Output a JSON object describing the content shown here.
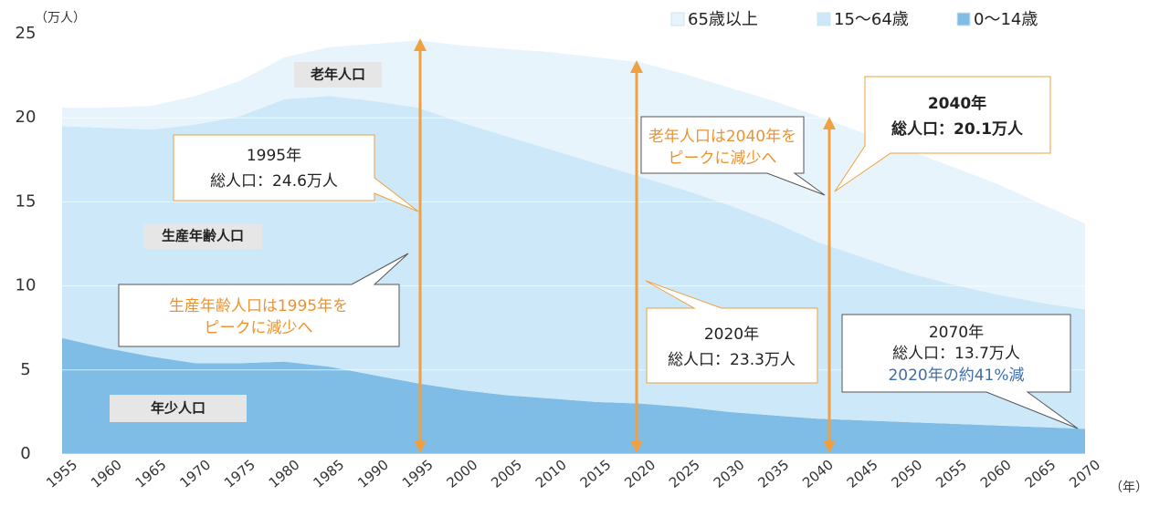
{
  "chart_data": {
    "type": "stacked_area",
    "y_unit_label": "（万人）",
    "x_unit_label": "（年）",
    "categories": [
      "1955",
      "1960",
      "1965",
      "1970",
      "1975",
      "1980",
      "1985",
      "1990",
      "1995",
      "2000",
      "2005",
      "2010",
      "2015",
      "2020",
      "2025",
      "2030",
      "2035",
      "2040",
      "2045",
      "2050",
      "2055",
      "2060",
      "2065",
      "2070"
    ],
    "series": [
      {
        "name": "0～14歳",
        "color": "#7fbde6",
        "values": [
          6.9,
          6.3,
          5.8,
          5.4,
          5.4,
          5.5,
          5.2,
          4.7,
          4.2,
          3.8,
          3.5,
          3.3,
          3.1,
          3.0,
          2.8,
          2.5,
          2.3,
          2.1,
          2.0,
          1.9,
          1.8,
          1.7,
          1.6,
          1.5
        ]
      },
      {
        "name": "15～64歳",
        "color": "#cde8f8",
        "values": [
          12.6,
          13.1,
          13.5,
          14.2,
          14.7,
          15.6,
          16.1,
          16.3,
          16.4,
          15.9,
          15.4,
          14.8,
          14.2,
          13.5,
          12.9,
          12.3,
          11.5,
          10.5,
          9.7,
          8.9,
          8.3,
          7.8,
          7.4,
          7.1
        ]
      },
      {
        "name": "65歳以上",
        "color": "#e8f4fc",
        "values": [
          1.1,
          1.2,
          1.4,
          1.7,
          2.1,
          2.5,
          2.9,
          3.4,
          4.0,
          4.6,
          5.2,
          5.8,
          6.3,
          6.8,
          6.9,
          7.0,
          7.2,
          7.5,
          7.4,
          7.3,
          7.0,
          6.6,
          5.9,
          5.1
        ]
      }
    ],
    "ylim": [
      0,
      25
    ],
    "yticks": [
      0,
      5,
      10,
      15,
      20,
      25
    ],
    "grid": true,
    "annotations": {
      "elderly_label": "老年人口",
      "working_label": "生産年齢人口",
      "young_label": "年少人口",
      "callout_1995": [
        "1995年",
        "総人口：24.6万人"
      ],
      "callout_working_peak": [
        "生産年齢人口は1995年を",
        "ピークに減少へ"
      ],
      "callout_elderly_peak": [
        "老年人口は2040年を",
        "ピークに減少へ"
      ],
      "callout_2040": [
        "2040年",
        "総人口：20.1万人"
      ],
      "callout_2020": [
        "2020年",
        "総人口：23.3万人"
      ],
      "callout_2070": [
        "2070年",
        "総人口：13.7万人",
        "2020年の約41%減"
      ]
    }
  }
}
